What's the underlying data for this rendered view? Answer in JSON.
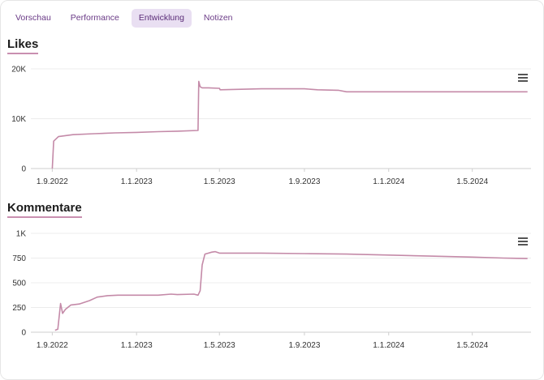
{
  "tabs": [
    {
      "label": "Vorschau",
      "active": false
    },
    {
      "label": "Performance",
      "active": false
    },
    {
      "label": "Entwicklung",
      "active": true
    },
    {
      "label": "Notizen",
      "active": false
    }
  ],
  "colors": {
    "line": "#c48aa8",
    "grid": "#ececec",
    "axis": "#cfcfcf",
    "tick": "#333333",
    "active_tab_bg": "#e9dff2"
  },
  "icons": {
    "menu": "hamburger-menu-icon"
  },
  "chart_data": [
    {
      "type": "line",
      "title": "Likes",
      "x_start": "2022-08-01",
      "x_end": "2024-07-25",
      "x_tick_labels": [
        {
          "date": "2022-09-01",
          "label": "1.9.2022"
        },
        {
          "date": "2023-01-01",
          "label": "1.1.2023"
        },
        {
          "date": "2023-05-01",
          "label": "1.5.2023"
        },
        {
          "date": "2023-09-01",
          "label": "1.9.2023"
        },
        {
          "date": "2024-01-01",
          "label": "1.1.2024"
        },
        {
          "date": "2024-05-01",
          "label": "1.5.2024"
        }
      ],
      "y_ticks": [
        {
          "value": 0,
          "label": "0"
        },
        {
          "value": 10000,
          "label": "10K"
        },
        {
          "value": 20000,
          "label": "20K"
        }
      ],
      "ylim": [
        0,
        20000
      ],
      "grid": true,
      "series": [
        {
          "x": [
            "2022-09-01",
            "2022-09-03",
            "2022-09-10",
            "2022-10-01",
            "2022-11-01",
            "2022-12-01",
            "2023-01-01",
            "2023-02-01",
            "2023-03-01",
            "2023-03-31",
            "2023-04-01",
            "2023-04-03",
            "2023-04-06",
            "2023-04-15",
            "2023-05-01",
            "2023-05-02",
            "2023-06-01",
            "2023-07-01",
            "2023-08-01",
            "2023-09-01",
            "2023-09-20",
            "2023-10-20",
            "2023-11-01",
            "2023-12-01",
            "2024-01-01",
            "2024-02-01",
            "2024-03-01",
            "2024-04-01",
            "2024-05-01",
            "2024-06-01",
            "2024-07-20"
          ],
          "y": [
            0,
            5500,
            6400,
            6800,
            7000,
            7150,
            7250,
            7400,
            7500,
            7650,
            17500,
            16400,
            16200,
            16200,
            16100,
            15800,
            15900,
            16000,
            16000,
            16000,
            15800,
            15700,
            15400,
            15400,
            15400,
            15400,
            15400,
            15400,
            15400,
            15400,
            15400
          ]
        }
      ]
    },
    {
      "type": "line",
      "title": "Kommentare",
      "x_start": "2022-08-01",
      "x_end": "2024-07-25",
      "x_tick_labels": [
        {
          "date": "2022-09-01",
          "label": "1.9.2022"
        },
        {
          "date": "2023-01-01",
          "label": "1.1.2023"
        },
        {
          "date": "2023-05-01",
          "label": "1.5.2023"
        },
        {
          "date": "2023-09-01",
          "label": "1.9.2023"
        },
        {
          "date": "2024-01-01",
          "label": "1.1.2024"
        },
        {
          "date": "2024-05-01",
          "label": "1.5.2024"
        }
      ],
      "y_ticks": [
        {
          "value": 0,
          "label": "0"
        },
        {
          "value": 250,
          "label": "250"
        },
        {
          "value": 500,
          "label": "500"
        },
        {
          "value": 750,
          "label": "750"
        },
        {
          "value": 1000,
          "label": "1K"
        }
      ],
      "ylim": [
        0,
        1000
      ],
      "grid": true,
      "series": [
        {
          "x": [
            "2022-09-05",
            "2022-09-09",
            "2022-09-13",
            "2022-09-16",
            "2022-09-20",
            "2022-09-28",
            "2022-10-10",
            "2022-10-25",
            "2022-11-05",
            "2022-11-20",
            "2022-12-05",
            "2023-01-01",
            "2023-02-01",
            "2023-02-20",
            "2023-03-01",
            "2023-03-25",
            "2023-03-31",
            "2023-04-03",
            "2023-04-06",
            "2023-04-10",
            "2023-04-20",
            "2023-04-25",
            "2023-05-01",
            "2023-06-01",
            "2023-07-01",
            "2023-09-01",
            "2023-11-01",
            "2024-01-01",
            "2024-03-01",
            "2024-05-01",
            "2024-06-15",
            "2024-07-20"
          ],
          "y": [
            20,
            30,
            290,
            190,
            230,
            275,
            285,
            320,
            355,
            370,
            375,
            375,
            375,
            385,
            380,
            385,
            375,
            420,
            680,
            790,
            810,
            815,
            800,
            800,
            800,
            795,
            790,
            780,
            770,
            760,
            750,
            745
          ]
        }
      ]
    }
  ]
}
